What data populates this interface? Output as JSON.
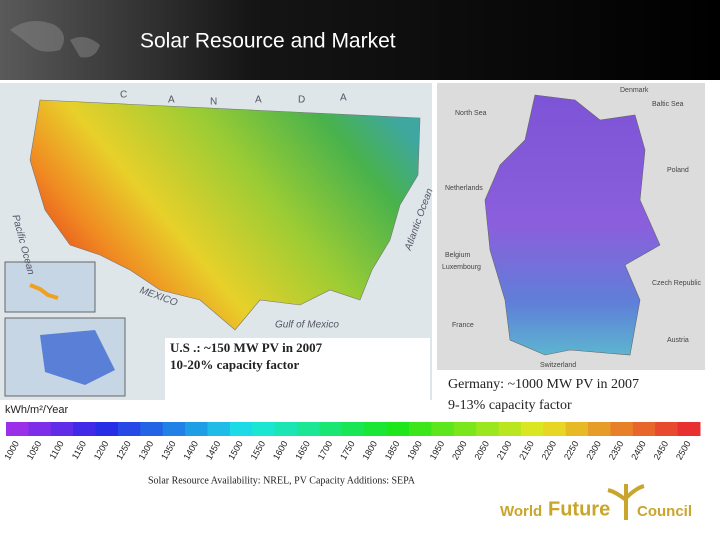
{
  "header": {
    "title": "Solar Resource and Market"
  },
  "us_map": {
    "labels": [
      "C",
      "A",
      "N",
      "A",
      "D",
      "A",
      "Pacific Ocean",
      "Atlantic Ocean",
      "Gulf of Mexico",
      "MEXICO"
    ],
    "caption": [
      "U.S .: ~150 MW PV in 2007",
      "10-20% capacity factor"
    ]
  },
  "germany_map": {
    "labels": [
      "Denmark",
      "Baltic Sea",
      "North Sea",
      "Netherlands",
      "Poland",
      "Belgium",
      "Luxembourg",
      "Czech Republic",
      "France",
      "Austria",
      "Switzerland"
    ],
    "caption": [
      "Germany: ~1000 MW PV in 2007",
      "9-13% capacity factor"
    ]
  },
  "legend": {
    "unit": "kWh/m²/Year",
    "labels": [
      1000,
      1050,
      1100,
      1150,
      1200,
      1250,
      1300,
      1350,
      1400,
      1450,
      1500,
      1550,
      1600,
      1650,
      1700,
      1750,
      1800,
      1850,
      1900,
      1950,
      2000,
      2050,
      2100,
      2150,
      2200,
      2250,
      2300,
      2350,
      2400,
      2450,
      2500
    ]
  },
  "source": "Solar Resource Availability: NREL, PV Capacity Additions: SEPA",
  "logo": [
    "World",
    "Future",
    "Council"
  ]
}
